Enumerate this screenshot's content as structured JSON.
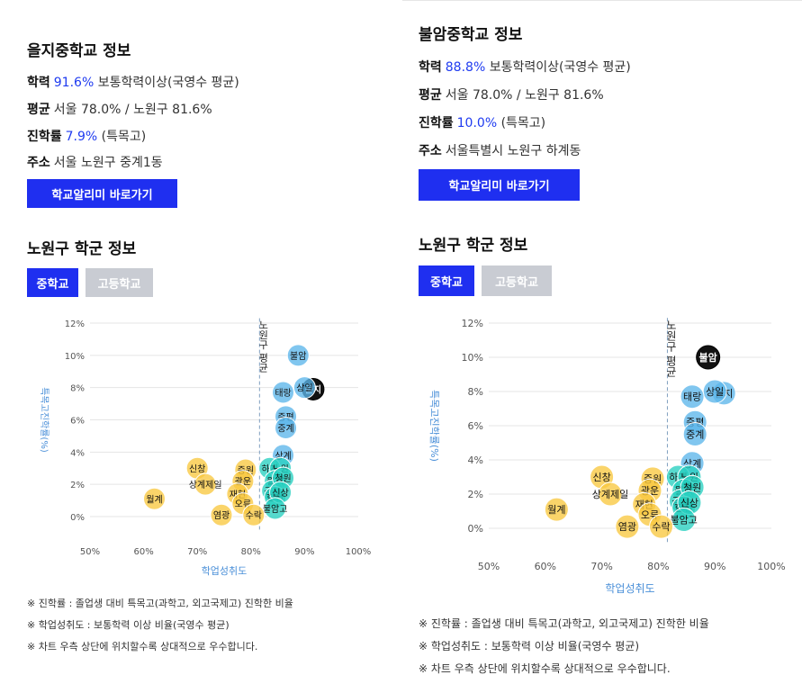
{
  "left": {
    "school_title": "을지중학교 정보",
    "rows": [
      {
        "key": "학력",
        "highlight": "91.6%",
        "text": " 보통학력이상(국영수 평균)"
      },
      {
        "key": "평균",
        "highlight": "",
        "text": "서울 78.0% / 노원구 81.6%"
      },
      {
        "key": "진학률",
        "highlight": "7.9%",
        "text": " (특목고)"
      },
      {
        "key": "주소",
        "highlight": "",
        "text": "서울 노원구 중계1동"
      }
    ],
    "button_label": "학교알리미 바로가기",
    "section_title": "노원구 학군 정보",
    "tabs": [
      {
        "label": "중학교",
        "active": true
      },
      {
        "label": "고등학교",
        "active": false
      }
    ],
    "highlight_school": "을지",
    "notes": [
      "※ 진학률 : 졸업생 대비 특목고(과학고, 외고국제고) 진학한 비율",
      "※ 학업성취도 : 보통학력 이상 비율(국영수 평균)",
      "※ 차트 우측 상단에 위치할수록 상대적으로 우수합니다."
    ]
  },
  "right": {
    "school_title": "불암중학교 정보",
    "rows": [
      {
        "key": "학력",
        "highlight": "88.8%",
        "text": " 보통학력이상(국영수 평균)"
      },
      {
        "key": "평균",
        "highlight": "",
        "text": "서울 78.0% / 노원구 81.6%"
      },
      {
        "key": "진학률",
        "highlight": "10.0%",
        "text": " (특목고)"
      },
      {
        "key": "주소",
        "highlight": "",
        "text": "서울특별시 노원구 하계동"
      }
    ],
    "button_label": "학교알리미 바로가기",
    "section_title": "노원구 학군 정보",
    "tabs": [
      {
        "label": "중학교",
        "active": true
      },
      {
        "label": "고등학교",
        "active": false
      }
    ],
    "highlight_school": "불암",
    "notes": [
      "※ 진학률 : 졸업생 대비 특목고(과학고, 외고국제고) 진학한 비율",
      "※ 학업성취도 : 보통학력 이상 비율(국영수 평균)",
      "※ 차트 우측 상단에 위치할수록 상대적으로 우수합니다."
    ]
  },
  "chart_data": {
    "type": "scatter",
    "xlabel": "학업성취도",
    "ylabel": "특목고진학률(%)",
    "xlim": [
      50,
      100
    ],
    "ylim": [
      -1,
      12.5
    ],
    "x_ticks": [
      "50%",
      "60%",
      "70%",
      "80%",
      "90%",
      "100%"
    ],
    "y_ticks": [
      "0%",
      "2%",
      "4%",
      "6%",
      "8%",
      "10%",
      "12%"
    ],
    "reference_line": {
      "x": 81.6,
      "label": "노원구 평균"
    },
    "colors": {
      "orange": "#f9c840",
      "teal": "#28cfc0",
      "blue": "#5cb6ea",
      "highlight": "#111111",
      "refline": "#7f9fbf",
      "grid": "#e5e5e5",
      "axis_label": "#4a8fd8"
    },
    "points": [
      {
        "name": "불암",
        "x": 88.8,
        "y": 10.0,
        "group": "blue"
      },
      {
        "name": "을지",
        "x": 91.6,
        "y": 7.9,
        "group": "blue"
      },
      {
        "name": "상일",
        "x": 90.0,
        "y": 8.0,
        "group": "blue"
      },
      {
        "name": "태랑",
        "x": 86.0,
        "y": 7.7,
        "group": "blue"
      },
      {
        "name": "중평",
        "x": 86.5,
        "y": 6.2,
        "group": "blue"
      },
      {
        "name": "중계",
        "x": 86.5,
        "y": 5.5,
        "group": "blue"
      },
      {
        "name": "상계",
        "x": 86.0,
        "y": 3.8,
        "group": "blue"
      },
      {
        "name": "하계",
        "x": 83.5,
        "y": 3.0,
        "group": "teal"
      },
      {
        "name": "노원",
        "x": 85.5,
        "y": 3.0,
        "group": "teal"
      },
      {
        "name": "월계",
        "x": 84.5,
        "y": 2.2,
        "group": "teal"
      },
      {
        "name": "공릉",
        "x": 84.0,
        "y": 1.6,
        "group": "teal"
      },
      {
        "name": "청원",
        "x": 86.0,
        "y": 2.4,
        "group": "teal"
      },
      {
        "name": "한천",
        "x": 84.5,
        "y": 1.2,
        "group": "teal"
      },
      {
        "name": "신상",
        "x": 85.5,
        "y": 1.5,
        "group": "teal"
      },
      {
        "name": "불암고",
        "x": 84.5,
        "y": 0.5,
        "group": "teal"
      },
      {
        "name": "신창",
        "x": 70.0,
        "y": 3.0,
        "group": "orange"
      },
      {
        "name": "상계제일",
        "x": 71.5,
        "y": 2.0,
        "group": "orange"
      },
      {
        "name": "중원",
        "x": 79.0,
        "y": 2.9,
        "group": "orange"
      },
      {
        "name": "광운",
        "x": 78.5,
        "y": 2.2,
        "group": "orange"
      },
      {
        "name": "재현",
        "x": 77.5,
        "y": 1.4,
        "group": "orange"
      },
      {
        "name": "오류",
        "x": 78.5,
        "y": 0.8,
        "group": "orange"
      },
      {
        "name": "월계",
        "x": 62.0,
        "y": 1.1,
        "group": "orange"
      },
      {
        "name": "염광",
        "x": 74.5,
        "y": 0.1,
        "group": "orange"
      },
      {
        "name": "수락",
        "x": 80.5,
        "y": 0.1,
        "group": "orange"
      }
    ]
  }
}
